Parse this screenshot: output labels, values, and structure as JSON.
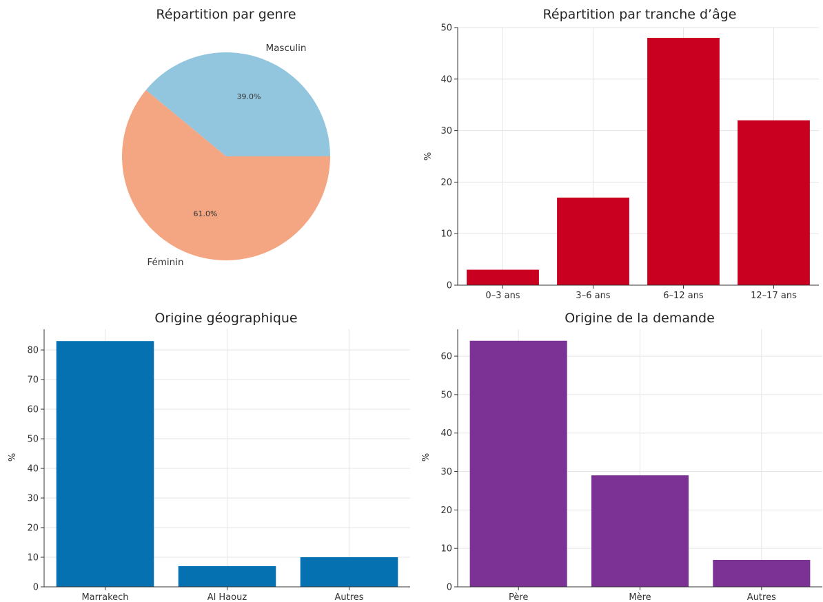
{
  "chart_data": [
    {
      "type": "pie",
      "title": "Répartition par genre",
      "labels": [
        "Masculin",
        "Féminin"
      ],
      "values": [
        39.0,
        61.0
      ],
      "pct_labels": [
        "39.0%",
        "61.0%"
      ],
      "colors": [
        "#92c5de",
        "#f4a582"
      ]
    },
    {
      "type": "bar",
      "title": "Répartition par tranche d’âge",
      "ylabel": "%",
      "categories": [
        "0–3 ans",
        "3–6 ans",
        "6–12 ans",
        "12–17 ans"
      ],
      "values": [
        3,
        17,
        48,
        32
      ],
      "ylim": [
        0,
        50
      ],
      "yticks": [
        0,
        10,
        20,
        30,
        40,
        50
      ],
      "color": "#ca0020",
      "grid": true
    },
    {
      "type": "bar",
      "title": "Origine géographique",
      "ylabel": "%",
      "categories": [
        "Marrakech",
        "Al Haouz",
        "Autres"
      ],
      "values": [
        83,
        7,
        10
      ],
      "ylim": [
        0,
        87
      ],
      "yticks": [
        0,
        10,
        20,
        30,
        40,
        50,
        60,
        70,
        80
      ],
      "color": "#0571b0",
      "grid": true
    },
    {
      "type": "bar",
      "title": "Origine de la demande",
      "ylabel": "%",
      "categories": [
        "Père",
        "Mère",
        "Autres"
      ],
      "values": [
        64,
        29,
        7
      ],
      "ylim": [
        0,
        67
      ],
      "yticks": [
        0,
        10,
        20,
        30,
        40,
        50,
        60
      ],
      "color": "#7b3294",
      "grid": true
    }
  ]
}
